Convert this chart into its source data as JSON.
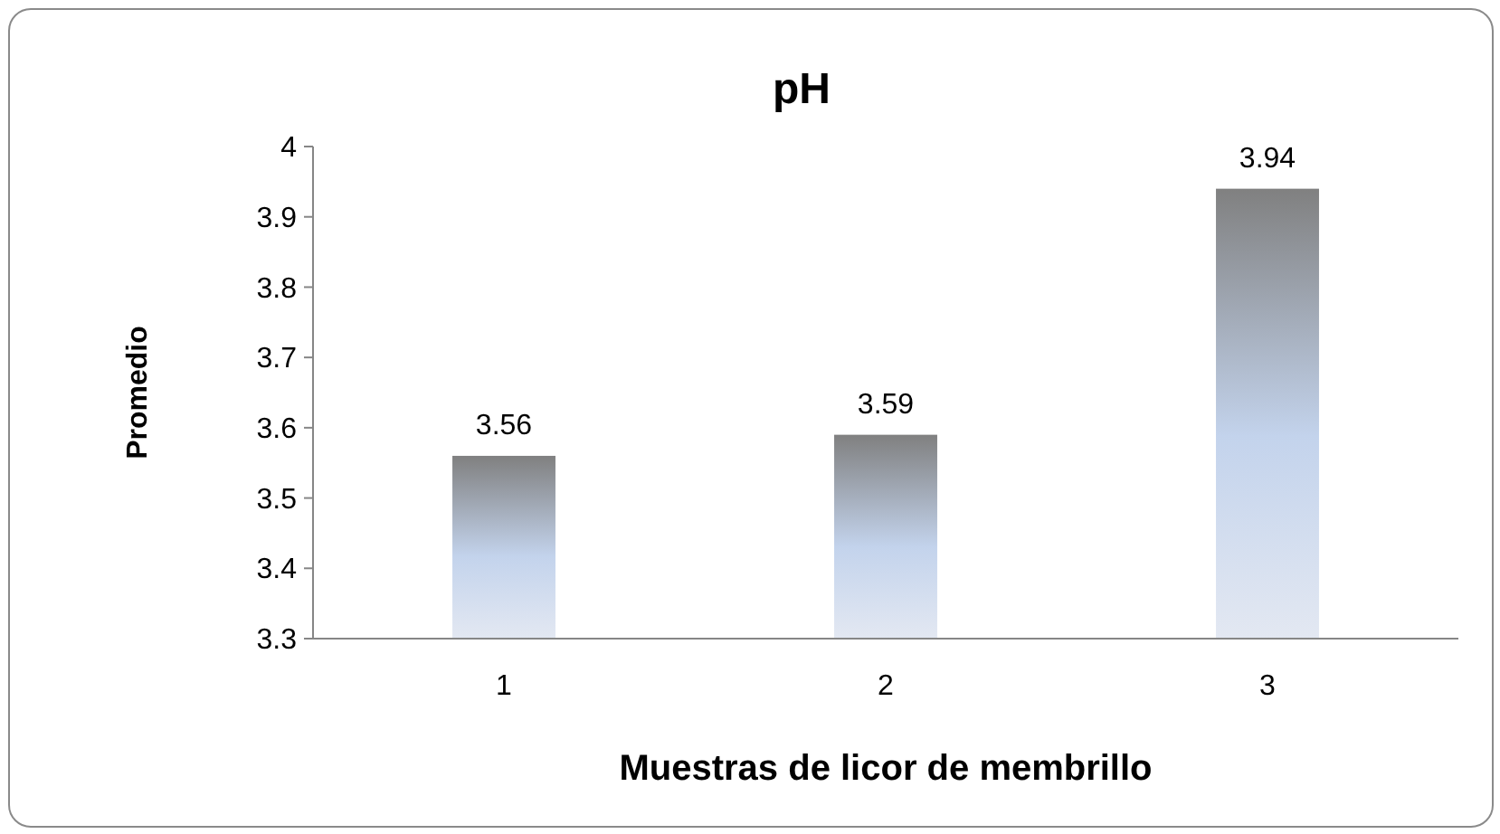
{
  "chart_data": {
    "type": "bar",
    "title": "pH",
    "xlabel": "Muestras de licor de membrillo",
    "ylabel": "Promedio",
    "categories": [
      "1",
      "2",
      "3"
    ],
    "values": [
      3.56,
      3.59,
      3.94
    ],
    "color": "#808080",
    "ylim": [
      3.3,
      4
    ],
    "yticks": [
      3.3,
      3.4,
      3.5,
      3.6,
      3.7,
      3.8,
      3.9,
      4
    ],
    "data_labels": true,
    "grid": false
  }
}
